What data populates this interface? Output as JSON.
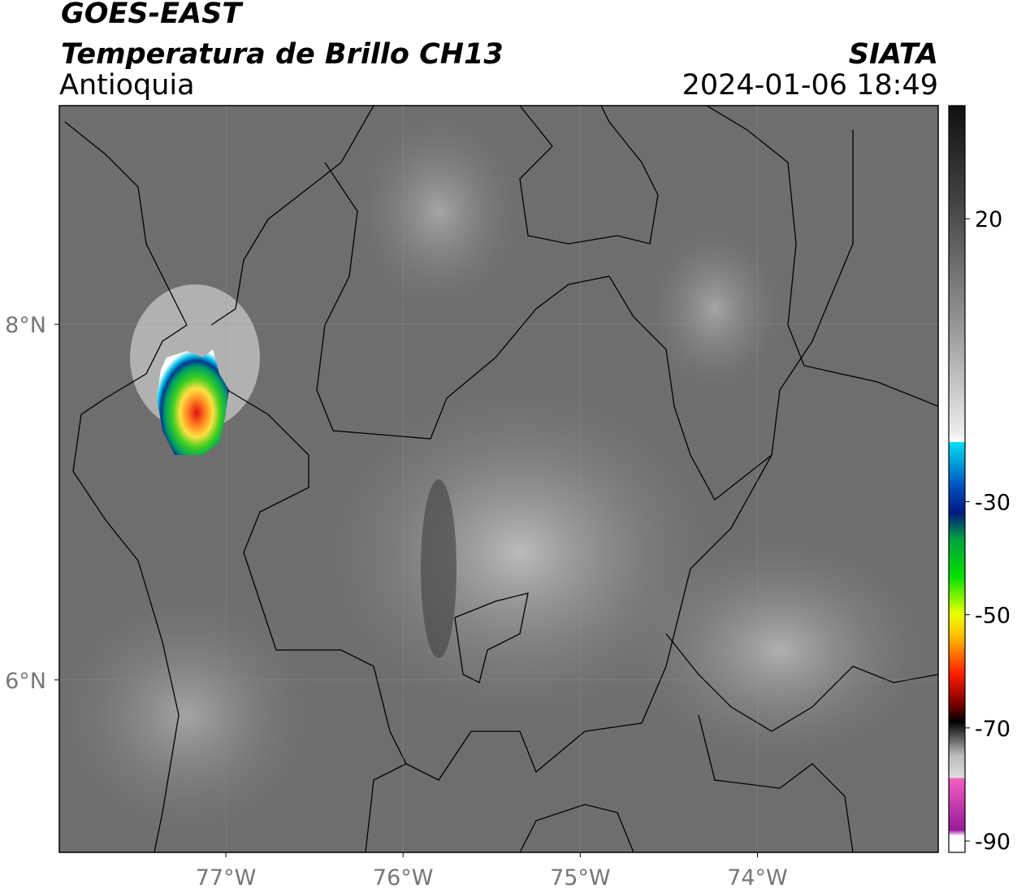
{
  "header": {
    "title": "GOES-EAST",
    "subtitle": "Temperatura de Brillo CH13",
    "region": "Antioquia",
    "source": "SIATA",
    "timestamp": "2024-01-06 18:49"
  },
  "map": {
    "xlim": [
      -77.94,
      -72.98
    ],
    "ylim": [
      5.03,
      9.23
    ],
    "xticks": [
      {
        "value": -77,
        "label": "77°W"
      },
      {
        "value": -76,
        "label": "76°W"
      },
      {
        "value": -75,
        "label": "75°W"
      },
      {
        "value": -74,
        "label": "74°W"
      }
    ],
    "yticks": [
      {
        "value": 8,
        "label": "8°N"
      },
      {
        "value": 6,
        "label": "6°N"
      }
    ],
    "grid": true
  },
  "colorbar": {
    "lim": [
      -92,
      40
    ],
    "ticks": [
      20,
      -30,
      -50,
      -70,
      -90
    ]
  }
}
